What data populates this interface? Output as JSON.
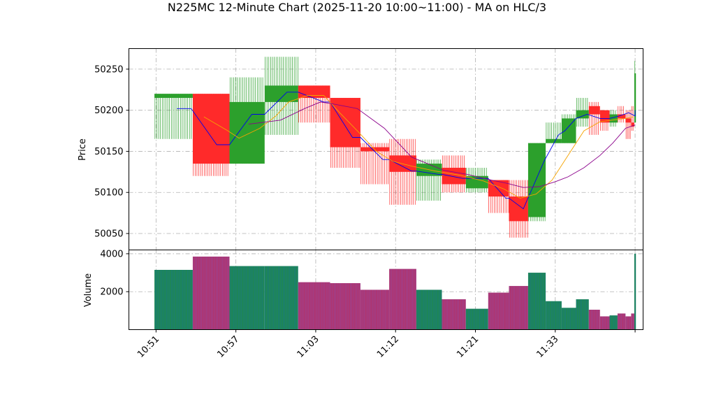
{
  "chart_data": {
    "type": "candlestick",
    "title": "N225MC 12-Minute Chart (2025-11-20 10:00~11:00) - MA on HLC/3",
    "price_panel": {
      "ylabel": "Price",
      "ylim": [
        50030,
        50275
      ],
      "yticks": [
        50050,
        50100,
        50150,
        50200,
        50250
      ],
      "grid": true
    },
    "volume_panel": {
      "ylabel": "Volume",
      "ylim": [
        0,
        4200
      ],
      "yticks": [
        2000,
        4000
      ],
      "grid": true
    },
    "xlim": [
      -1.7,
      30.5
    ],
    "xticks": [
      {
        "label": "10:51",
        "x": 0
      },
      {
        "label": "10:57",
        "x": 5
      },
      {
        "label": "11:03",
        "x": 10
      },
      {
        "label": "11:12",
        "x": 15
      },
      {
        "label": "11:21",
        "x": 20
      },
      {
        "label": "11:33",
        "x": 25
      },
      {
        "label": "",
        "x": 30
      }
    ],
    "colors": {
      "up": "#2ca02c",
      "down": "#ff2a2a",
      "ma_fast": "#0000ee",
      "ma_mid": "#f5a300",
      "ma_slow": "#8b008b",
      "vol_edge": "#9467bd"
    },
    "candles": [
      {
        "x0": -0.1,
        "x1": 2.3,
        "open": 50215,
        "close": 50220,
        "high": 50220,
        "low": 50165,
        "up": true,
        "volume": 3150
      },
      {
        "x0": 2.3,
        "x1": 4.6,
        "open": 50220,
        "close": 50135,
        "high": 50220,
        "low": 50120,
        "up": false,
        "volume": 3850
      },
      {
        "x0": 4.6,
        "x1": 6.8,
        "open": 50135,
        "close": 50210,
        "high": 50240,
        "low": 50135,
        "up": true,
        "volume": 3350
      },
      {
        "x0": 6.8,
        "x1": 8.9,
        "open": 50210,
        "close": 50230,
        "high": 50265,
        "low": 50170,
        "up": true,
        "volume": 3350
      },
      {
        "x0": 8.9,
        "x1": 10.9,
        "open": 50230,
        "close": 50215,
        "high": 50230,
        "low": 50185,
        "up": false,
        "volume": 2500
      },
      {
        "x0": 10.9,
        "x1": 12.8,
        "open": 50215,
        "close": 50155,
        "high": 50215,
        "low": 50130,
        "up": false,
        "volume": 2450
      },
      {
        "x0": 12.8,
        "x1": 14.6,
        "open": 50155,
        "close": 50150,
        "high": 50160,
        "low": 50110,
        "up": false,
        "volume": 2100
      },
      {
        "x0": 14.6,
        "x1": 16.3,
        "open": 50145,
        "close": 50125,
        "high": 50165,
        "low": 50085,
        "up": false,
        "volume": 3200
      },
      {
        "x0": 16.3,
        "x1": 17.9,
        "open": 50120,
        "close": 50135,
        "high": 50140,
        "low": 50090,
        "up": true,
        "volume": 2100
      },
      {
        "x0": 17.9,
        "x1": 19.4,
        "open": 50130,
        "close": 50110,
        "high": 50145,
        "low": 50100,
        "up": false,
        "volume": 1600
      },
      {
        "x0": 19.4,
        "x1": 20.8,
        "open": 50105,
        "close": 50120,
        "high": 50130,
        "low": 50100,
        "up": true,
        "volume": 1100
      },
      {
        "x0": 20.8,
        "x1": 22.1,
        "open": 50115,
        "close": 50095,
        "high": 50115,
        "low": 50075,
        "up": false,
        "volume": 1950
      },
      {
        "x0": 22.1,
        "x1": 23.3,
        "open": 50095,
        "close": 50065,
        "high": 50115,
        "low": 50045,
        "up": false,
        "volume": 2300
      },
      {
        "x0": 23.3,
        "x1": 24.4,
        "open": 50070,
        "close": 50160,
        "high": 50160,
        "low": 50065,
        "up": true,
        "volume": 3000
      },
      {
        "x0": 24.4,
        "x1": 25.4,
        "open": 50160,
        "close": 50165,
        "high": 50185,
        "low": 50160,
        "up": true,
        "volume": 1500
      },
      {
        "x0": 25.4,
        "x1": 26.3,
        "open": 50160,
        "close": 50190,
        "high": 50195,
        "low": 50160,
        "up": true,
        "volume": 1150
      },
      {
        "x0": 26.3,
        "x1": 27.1,
        "open": 50190,
        "close": 50200,
        "high": 50215,
        "low": 50180,
        "up": true,
        "volume": 1600
      },
      {
        "x0": 27.1,
        "x1": 27.8,
        "open": 50205,
        "close": 50195,
        "high": 50210,
        "low": 50170,
        "up": false,
        "volume": 1050
      },
      {
        "x0": 27.8,
        "x1": 28.4,
        "open": 50200,
        "close": 50185,
        "high": 50200,
        "low": 50175,
        "up": false,
        "volume": 700
      },
      {
        "x0": 28.4,
        "x1": 28.9,
        "open": 50185,
        "close": 50195,
        "high": 50200,
        "low": 50180,
        "up": true,
        "volume": 750
      },
      {
        "x0": 28.9,
        "x1": 29.4,
        "open": 50195,
        "close": 50190,
        "high": 50205,
        "low": 50185,
        "up": false,
        "volume": 850
      },
      {
        "x0": 29.4,
        "x1": 29.75,
        "open": 50190,
        "close": 50185,
        "high": 50200,
        "low": 50165,
        "up": false,
        "volume": 700
      },
      {
        "x0": 29.75,
        "x1": 29.95,
        "open": 50185,
        "close": 50180,
        "high": 50205,
        "low": 50175,
        "up": false,
        "volume": 850
      },
      {
        "x0": 29.95,
        "x1": 30.05,
        "open": 50185,
        "close": 50245,
        "high": 50260,
        "low": 50185,
        "up": true,
        "volume": 4000
      }
    ],
    "ma_series": [
      {
        "color_key": "ma_fast",
        "points": [
          [
            1.3,
            50202
          ],
          [
            2.2,
            50202
          ],
          [
            3.8,
            50158
          ],
          [
            4.6,
            50158
          ],
          [
            6.0,
            50195
          ],
          [
            6.8,
            50195
          ],
          [
            8.2,
            50222
          ],
          [
            8.9,
            50222
          ],
          [
            10.5,
            50210
          ],
          [
            10.9,
            50210
          ],
          [
            12.3,
            50167
          ],
          [
            12.8,
            50167
          ],
          [
            14.2,
            50140
          ],
          [
            14.6,
            50140
          ],
          [
            16.0,
            50126
          ],
          [
            16.3,
            50126
          ],
          [
            17.7,
            50122
          ],
          [
            17.9,
            50122
          ],
          [
            19.2,
            50117
          ],
          [
            20.8,
            50117
          ],
          [
            21.9,
            50093
          ],
          [
            22.1,
            50093
          ],
          [
            23.0,
            50080
          ],
          [
            24.3,
            50138
          ],
          [
            25.2,
            50170
          ],
          [
            25.6,
            50175
          ],
          [
            26.3,
            50190
          ],
          [
            27.0,
            50195
          ],
          [
            27.8,
            50190
          ],
          [
            28.4,
            50190
          ],
          [
            29.0,
            50193
          ],
          [
            29.6,
            50197
          ],
          [
            30.0,
            50193
          ],
          [
            30.0,
            50200
          ]
        ]
      },
      {
        "color_key": "ma_mid",
        "points": [
          [
            3.0,
            50192
          ],
          [
            4.5,
            50175
          ],
          [
            5.2,
            50166
          ],
          [
            6.5,
            50178
          ],
          [
            7.5,
            50193
          ],
          [
            8.3,
            50210
          ],
          [
            9.5,
            50218
          ],
          [
            10.5,
            50218
          ],
          [
            11.5,
            50197
          ],
          [
            12.6,
            50175
          ],
          [
            13.8,
            50150
          ],
          [
            14.8,
            50138
          ],
          [
            16.0,
            50132
          ],
          [
            17.5,
            50126
          ],
          [
            19.0,
            50121
          ],
          [
            20.5,
            50114
          ],
          [
            21.8,
            50104
          ],
          [
            22.8,
            50093
          ],
          [
            23.8,
            50098
          ],
          [
            24.8,
            50115
          ],
          [
            25.8,
            50145
          ],
          [
            26.8,
            50175
          ],
          [
            27.8,
            50186
          ],
          [
            28.6,
            50188
          ],
          [
            29.4,
            50190
          ],
          [
            29.9,
            50192
          ]
        ]
      },
      {
        "color_key": "ma_slow",
        "points": [
          [
            5.8,
            50183
          ],
          [
            7.8,
            50188
          ],
          [
            9.3,
            50202
          ],
          [
            10.3,
            50210
          ],
          [
            11.0,
            50208
          ],
          [
            12.6,
            50202
          ],
          [
            14.3,
            50178
          ],
          [
            16.0,
            50143
          ],
          [
            18.0,
            50127
          ],
          [
            19.5,
            50122
          ],
          [
            21.0,
            50115
          ],
          [
            22.0,
            50111
          ],
          [
            23.0,
            50106
          ],
          [
            24.0,
            50107
          ],
          [
            25.0,
            50113
          ],
          [
            25.8,
            50119
          ],
          [
            26.8,
            50130
          ],
          [
            27.8,
            50145
          ],
          [
            28.6,
            50160
          ],
          [
            29.4,
            50178
          ],
          [
            30.0,
            50182
          ]
        ]
      }
    ]
  }
}
